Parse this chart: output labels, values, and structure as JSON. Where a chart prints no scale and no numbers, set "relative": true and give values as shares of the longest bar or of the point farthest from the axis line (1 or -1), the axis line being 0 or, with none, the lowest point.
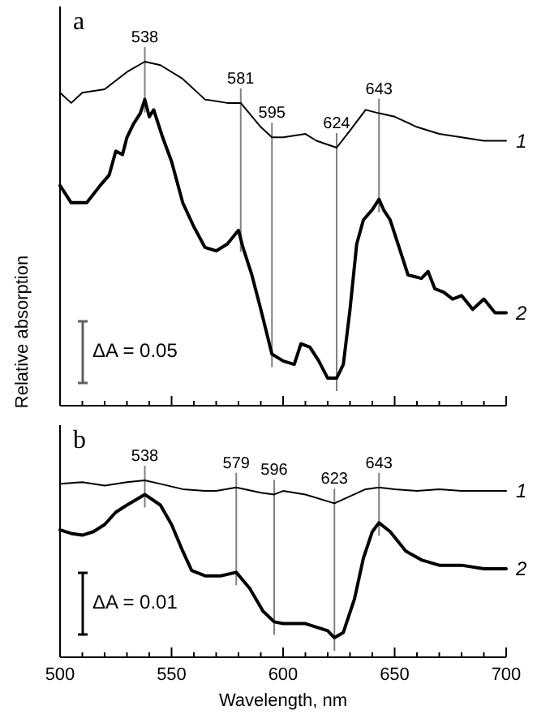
{
  "chart_data": [
    {
      "type": "line",
      "title": "a",
      "ylabel": "Relative absorption",
      "relative": true,
      "xlim": [
        500,
        700
      ],
      "tick_labels": false,
      "xticks": [
        500,
        {
          "value": 510,
          "label": null
        },
        {
          "value": 520,
          "label": null
        },
        {
          "value": 530,
          "label": null
        },
        {
          "value": 540,
          "label": null
        },
        550,
        {
          "value": 560,
          "label": null
        },
        {
          "value": 570,
          "label": null
        },
        {
          "value": 580,
          "label": null
        },
        {
          "value": 590,
          "label": null
        },
        600,
        {
          "value": 610,
          "label": null
        },
        {
          "value": 620,
          "label": null
        },
        {
          "value": 630,
          "label": null
        },
        {
          "value": 640,
          "label": null
        },
        650,
        {
          "value": 660,
          "label": null
        },
        {
          "value": 670,
          "label": null
        },
        {
          "value": 680,
          "label": null
        },
        {
          "value": 690,
          "label": null
        },
        700
      ],
      "series": [
        {
          "name": "1",
          "color": "#000000",
          "x": [
            500,
            505,
            510,
            520,
            530,
            538,
            545,
            555,
            565,
            575,
            581,
            590,
            595,
            600,
            610,
            615,
            624,
            630,
            637,
            643,
            650,
            660,
            670,
            680,
            690,
            700
          ],
          "values": [
            0.91,
            0.88,
            0.91,
            0.92,
            0.97,
            1.0,
            0.99,
            0.95,
            0.89,
            0.88,
            0.88,
            0.81,
            0.78,
            0.78,
            0.79,
            0.77,
            0.75,
            0.8,
            0.86,
            0.85,
            0.84,
            0.81,
            0.79,
            0.78,
            0.77,
            0.77
          ]
        },
        {
          "name": "2",
          "color": "#000000",
          "x": [
            500,
            505,
            512,
            518,
            522,
            525,
            528,
            530,
            533,
            536,
            538,
            540,
            542,
            546,
            550,
            555,
            560,
            565,
            570,
            575,
            580,
            582,
            586,
            590,
            595,
            600,
            605,
            608,
            612,
            616,
            620,
            624,
            627,
            630,
            633,
            636,
            640,
            643,
            645,
            648,
            652,
            656,
            662,
            665,
            668,
            672,
            676,
            680,
            685,
            690,
            695,
            700
          ],
          "values": [
            0.64,
            0.59,
            0.59,
            0.64,
            0.67,
            0.74,
            0.73,
            0.78,
            0.82,
            0.85,
            0.89,
            0.84,
            0.86,
            0.78,
            0.71,
            0.59,
            0.52,
            0.46,
            0.45,
            0.47,
            0.51,
            0.46,
            0.38,
            0.28,
            0.15,
            0.13,
            0.12,
            0.18,
            0.17,
            0.13,
            0.08,
            0.08,
            0.12,
            0.28,
            0.47,
            0.54,
            0.57,
            0.6,
            0.57,
            0.54,
            0.46,
            0.38,
            0.37,
            0.39,
            0.34,
            0.33,
            0.31,
            0.32,
            0.28,
            0.31,
            0.27,
            0.27
          ]
        }
      ],
      "ref_lines": [
        {
          "axis": "x",
          "value": 538,
          "label": "538",
          "color": "#808080"
        },
        {
          "axis": "x",
          "value": 581,
          "label": "581",
          "color": "#808080"
        },
        {
          "axis": "x",
          "value": 595,
          "label": "595",
          "color": "#808080"
        },
        {
          "axis": "x",
          "value": 624,
          "label": "624",
          "color": "#808080"
        },
        {
          "axis": "x",
          "value": 643,
          "label": "643",
          "color": "#808080"
        }
      ],
      "annotations": [
        "ΔA = 0.05"
      ]
    },
    {
      "type": "line",
      "title": "b",
      "xlabel": "Wavelength, nm",
      "relative": true,
      "xlim": [
        500,
        700
      ],
      "tick_labels": "x",
      "xticks": [
        500,
        {
          "value": 510,
          "label": null
        },
        {
          "value": 520,
          "label": null
        },
        {
          "value": 530,
          "label": null
        },
        {
          "value": 540,
          "label": null
        },
        550,
        {
          "value": 560,
          "label": null
        },
        {
          "value": 570,
          "label": null
        },
        {
          "value": 580,
          "label": null
        },
        {
          "value": 590,
          "label": null
        },
        600,
        {
          "value": 610,
          "label": null
        },
        {
          "value": 620,
          "label": null
        },
        {
          "value": 630,
          "label": null
        },
        {
          "value": 640,
          "label": null
        },
        650,
        {
          "value": 660,
          "label": null
        },
        {
          "value": 670,
          "label": null
        },
        {
          "value": 680,
          "label": null
        },
        {
          "value": 690,
          "label": null
        },
        700
      ],
      "series": [
        {
          "name": "1",
          "color": "#000000",
          "x": [
            500,
            510,
            520,
            530,
            538,
            545,
            555,
            565,
            570,
            579,
            590,
            596,
            600,
            610,
            623,
            630,
            637,
            643,
            650,
            660,
            670,
            680,
            690,
            700
          ],
          "values": [
            0.98,
            0.99,
            0.97,
            0.99,
            1.0,
            0.98,
            0.95,
            0.94,
            0.94,
            0.96,
            0.93,
            0.92,
            0.94,
            0.92,
            0.87,
            0.91,
            0.95,
            0.96,
            0.95,
            0.94,
            0.95,
            0.94,
            0.94,
            0.94
          ]
        },
        {
          "name": "2",
          "color": "#000000",
          "x": [
            500,
            505,
            510,
            515,
            520,
            525,
            530,
            538,
            545,
            550,
            555,
            559,
            565,
            572,
            579,
            585,
            591,
            596,
            600,
            610,
            620,
            623,
            627,
            632,
            636,
            640,
            643,
            648,
            655,
            662,
            670,
            680,
            690,
            700
          ],
          "values": [
            0.72,
            0.7,
            0.69,
            0.71,
            0.75,
            0.82,
            0.86,
            0.92,
            0.86,
            0.75,
            0.6,
            0.49,
            0.46,
            0.46,
            0.48,
            0.39,
            0.26,
            0.2,
            0.19,
            0.19,
            0.15,
            0.11,
            0.14,
            0.33,
            0.56,
            0.71,
            0.76,
            0.71,
            0.6,
            0.55,
            0.52,
            0.52,
            0.5,
            0.5
          ]
        }
      ],
      "ref_lines": [
        {
          "axis": "x",
          "value": 538,
          "label": "538",
          "color": "#808080"
        },
        {
          "axis": "x",
          "value": 579,
          "label": "579",
          "color": "#808080"
        },
        {
          "axis": "x",
          "value": 596,
          "label": "596",
          "color": "#808080"
        },
        {
          "axis": "x",
          "value": 623,
          "label": "623",
          "color": "#808080"
        },
        {
          "axis": "x",
          "value": 643,
          "label": "643",
          "color": "#808080"
        }
      ],
      "annotations": [
        "ΔA = 0.01"
      ]
    }
  ]
}
